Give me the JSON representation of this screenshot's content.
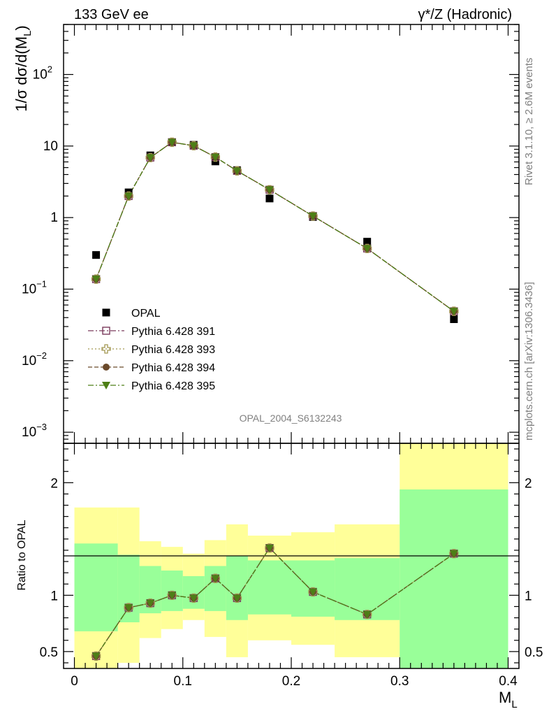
{
  "header": {
    "left_title": "133 GeV ee",
    "right_title": "γ*/Z (Hadronic)"
  },
  "side_labels": {
    "top": "Rivet 3.1.10, ≥ 2.6M events",
    "bottom": "mcplots.cern.ch [arXiv:1306.3436]"
  },
  "chart_data": [
    {
      "type": "scatter",
      "title": "",
      "analysis_label": "OPAL_2004_S6132243",
      "ylabel": "1/σ dσ/d(M_L)",
      "yscale": "log",
      "ylim": [
        0.0007,
        500
      ],
      "y_ticks": [
        {
          "value": 0.001,
          "base": "10",
          "exp": "−3"
        },
        {
          "value": 0.01,
          "base": "10",
          "exp": "−2"
        },
        {
          "value": 0.1,
          "base": "10",
          "exp": "−1"
        },
        {
          "value": 1,
          "base": "1",
          "exp": ""
        },
        {
          "value": 10,
          "base": "10",
          "exp": ""
        },
        {
          "value": 100,
          "base": "10",
          "exp": "2"
        }
      ],
      "xlim": [
        -0.01,
        0.41
      ],
      "x": [
        0.02,
        0.05,
        0.07,
        0.09,
        0.11,
        0.13,
        0.15,
        0.18,
        0.22,
        0.27,
        0.35
      ],
      "series": [
        {
          "name": "OPAL",
          "marker": "square-filled",
          "color": "#000000",
          "values": [
            0.3,
            2.25,
            7.4,
            11.3,
            10.4,
            6.1,
            4.6,
            1.85,
            1.02,
            0.46,
            0.038
          ]
        },
        {
          "name": "Pythia 6.428 391",
          "marker": "square-open",
          "color": "#7a3b5c",
          "values": [
            0.138,
            2.0,
            6.9,
            11.3,
            10.1,
            7.0,
            4.5,
            2.45,
            1.05,
            0.37,
            0.049
          ]
        },
        {
          "name": "Pythia 6.428 393",
          "marker": "cross-open",
          "color": "#a29650",
          "values": [
            0.138,
            2.0,
            6.9,
            11.3,
            10.1,
            7.0,
            4.5,
            2.45,
            1.05,
            0.37,
            0.049
          ]
        },
        {
          "name": "Pythia 6.428 394",
          "marker": "circle-filled",
          "color": "#6b4a2b",
          "values": [
            0.138,
            2.0,
            6.9,
            11.3,
            10.1,
            7.0,
            4.5,
            2.45,
            1.05,
            0.37,
            0.049
          ]
        },
        {
          "name": "Pythia 6.428 395",
          "marker": "triangle-down-filled",
          "color": "#4d7f16",
          "values": [
            0.138,
            2.0,
            6.9,
            11.3,
            10.1,
            7.0,
            4.5,
            2.45,
            1.05,
            0.37,
            0.049
          ]
        }
      ]
    },
    {
      "type": "line",
      "ylabel": "Ratio to OPAL",
      "xlabel": "M_L",
      "ylim": [
        0.35,
        2.35
      ],
      "xlim": [
        -0.01,
        0.41
      ],
      "y_ticks": [
        "0.5",
        "1",
        "2"
      ],
      "x_ticks": [
        "0",
        "0.1",
        "0.2",
        "0.3",
        "0.4"
      ],
      "bin_edges": [
        0.0,
        0.04,
        0.06,
        0.08,
        0.1,
        0.12,
        0.14,
        0.16,
        0.2,
        0.24,
        0.3,
        0.4
      ],
      "band_yellow": [
        [
          0.35,
          1.78
        ],
        [
          0.4,
          1.78
        ],
        [
          0.62,
          1.48
        ],
        [
          0.7,
          1.43
        ],
        [
          0.78,
          1.37
        ],
        [
          0.63,
          1.49
        ],
        [
          0.45,
          1.63
        ],
        [
          0.6,
          1.53
        ],
        [
          0.56,
          1.56
        ],
        [
          0.45,
          1.63
        ],
        [
          0.35,
          2.35
        ]
      ],
      "band_green": [
        [
          0.68,
          1.46
        ],
        [
          0.76,
          1.36
        ],
        [
          0.84,
          1.26
        ],
        [
          0.86,
          1.22
        ],
        [
          0.88,
          1.17
        ],
        [
          0.86,
          1.26
        ],
        [
          0.78,
          1.35
        ],
        [
          0.83,
          1.31
        ],
        [
          0.81,
          1.31
        ],
        [
          0.78,
          1.33
        ],
        [
          0.35,
          1.94
        ]
      ],
      "x": [
        0.02,
        0.05,
        0.07,
        0.09,
        0.11,
        0.13,
        0.15,
        0.18,
        0.22,
        0.27,
        0.35
      ],
      "values": [
        0.46,
        0.89,
        0.93,
        1.0,
        0.975,
        1.15,
        0.975,
        1.42,
        1.03,
        0.83,
        1.37
      ],
      "reference": 1
    }
  ]
}
